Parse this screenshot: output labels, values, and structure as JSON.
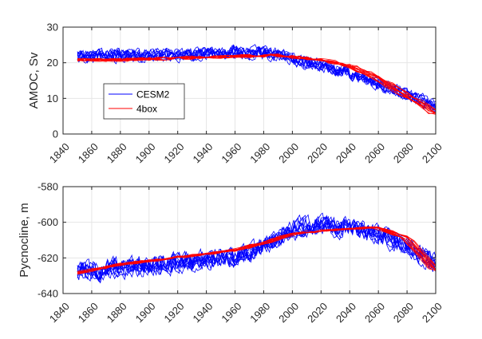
{
  "colors": {
    "cesm2": "#0000ff",
    "box4": "#ff0000",
    "grid": "#e6e6e6",
    "axis": "#262626"
  },
  "chart_data": [
    {
      "type": "line",
      "ylabel": "AMOC, Sv",
      "xlim": [
        1840,
        2100
      ],
      "ylim": [
        0,
        30
      ],
      "x_ticks": [
        "1840",
        "1860",
        "1880",
        "1900",
        "1920",
        "1940",
        "1960",
        "1980",
        "2000",
        "2020",
        "2040",
        "2060",
        "2080",
        "2100"
      ],
      "y_ticks": [
        "0",
        "10",
        "20",
        "30"
      ],
      "grid": true,
      "legend": {
        "placement": "lower-left",
        "entries": [
          "CESM2",
          "4box"
        ]
      },
      "series": [
        {
          "name": "CESM2",
          "ensemble_members": 10,
          "x": [
            1850,
            1880,
            1920,
            1960,
            1990,
            2000,
            2020,
            2040,
            2060,
            2080,
            2100
          ],
          "values": [
            21.5,
            21.5,
            21.8,
            22.5,
            22.0,
            20.5,
            18.5,
            16.0,
            13.0,
            10.0,
            6.5
          ]
        },
        {
          "name": "4box",
          "ensemble_members": 10,
          "x": [
            1850,
            1880,
            1920,
            1960,
            1990,
            2000,
            2020,
            2040,
            2060,
            2080,
            2100
          ],
          "values": [
            20.5,
            20.5,
            21.0,
            21.5,
            21.8,
            21.3,
            20.5,
            18.5,
            15.0,
            10.0,
            5.0
          ]
        }
      ]
    },
    {
      "type": "line",
      "ylabel": "Pycnocline, m",
      "xlim": [
        1840,
        2100
      ],
      "ylim": [
        -640,
        -580
      ],
      "x_ticks": [
        "1840",
        "1860",
        "1880",
        "1900",
        "1920",
        "1940",
        "1960",
        "1980",
        "2000",
        "2020",
        "2040",
        "2060",
        "2080",
        "2100"
      ],
      "y_ticks": [
        "-640",
        "-620",
        "-600",
        "-580"
      ],
      "grid": true,
      "series": [
        {
          "name": "CESM2",
          "ensemble_members": 10,
          "x": [
            1850,
            1880,
            1920,
            1960,
            1980,
            2000,
            2020,
            2040,
            2060,
            2080,
            2100
          ],
          "values": [
            -624,
            -622,
            -619,
            -616,
            -610,
            -600,
            -598,
            -600,
            -603,
            -610,
            -620
          ]
        },
        {
          "name": "4box",
          "ensemble_members": 10,
          "x": [
            1850,
            1880,
            1920,
            1960,
            1980,
            2000,
            2020,
            2040,
            2060,
            2080,
            2100
          ],
          "values": [
            -627,
            -622,
            -618,
            -614,
            -610,
            -605,
            -603,
            -602,
            -601,
            -607,
            -625
          ]
        }
      ]
    }
  ]
}
